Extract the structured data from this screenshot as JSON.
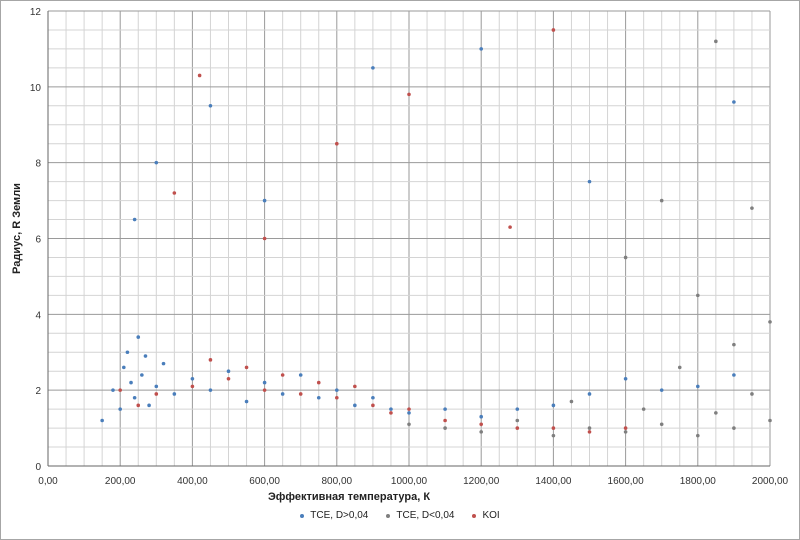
{
  "chart_data": {
    "type": "scatter",
    "title": "",
    "xlabel": "Эффективная температура, К",
    "ylabel": "Радиус, R Земли",
    "xlim": [
      0,
      2000
    ],
    "ylim": [
      0,
      12
    ],
    "x_ticks": [
      "0,00",
      "200,00",
      "400,00",
      "600,00",
      "800,00",
      "1000,00",
      "1200,00",
      "1400,00",
      "1600,00",
      "1800,00",
      "2000,00"
    ],
    "y_ticks": [
      "0",
      "2",
      "4",
      "6",
      "8",
      "10",
      "12"
    ],
    "grid": true,
    "legend_position": "bottom",
    "series": [
      {
        "name": "TCE, D>0,04",
        "color": "#4a7ebb",
        "points": [
          [
            150,
            1.2
          ],
          [
            180,
            2.0
          ],
          [
            200,
            1.5
          ],
          [
            210,
            2.6
          ],
          [
            220,
            3.0
          ],
          [
            230,
            2.2
          ],
          [
            240,
            1.8
          ],
          [
            250,
            3.4
          ],
          [
            260,
            2.4
          ],
          [
            270,
            2.9
          ],
          [
            280,
            1.6
          ],
          [
            300,
            2.1
          ],
          [
            320,
            2.7
          ],
          [
            350,
            1.9
          ],
          [
            400,
            2.3
          ],
          [
            450,
            2.0
          ],
          [
            500,
            2.5
          ],
          [
            550,
            1.7
          ],
          [
            600,
            2.2
          ],
          [
            650,
            1.9
          ],
          [
            700,
            2.4
          ],
          [
            750,
            1.8
          ],
          [
            800,
            2.0
          ],
          [
            850,
            1.6
          ],
          [
            900,
            1.8
          ],
          [
            950,
            1.5
          ],
          [
            1000,
            1.4
          ],
          [
            1100,
            1.5
          ],
          [
            1200,
            1.3
          ],
          [
            1300,
            1.5
          ],
          [
            1400,
            1.6
          ],
          [
            1500,
            1.9
          ],
          [
            1600,
            2.3
          ],
          [
            1700,
            2.0
          ],
          [
            1800,
            2.1
          ],
          [
            1900,
            2.4
          ],
          [
            240,
            6.5
          ],
          [
            300,
            8.0
          ],
          [
            450,
            9.5
          ],
          [
            600,
            7.0
          ],
          [
            900,
            10.5
          ],
          [
            1200,
            11.0
          ],
          [
            1500,
            7.5
          ],
          [
            1900,
            9.6
          ]
        ]
      },
      {
        "name": "TCE, D<0,04",
        "color": "#7f7f7f",
        "points": [
          [
            1000,
            1.1
          ],
          [
            1100,
            1.0
          ],
          [
            1200,
            0.9
          ],
          [
            1300,
            1.2
          ],
          [
            1400,
            0.8
          ],
          [
            1500,
            1.0
          ],
          [
            1600,
            0.9
          ],
          [
            1700,
            1.1
          ],
          [
            1800,
            0.8
          ],
          [
            1900,
            1.0
          ],
          [
            2000,
            1.2
          ],
          [
            1450,
            1.7
          ],
          [
            1650,
            1.5
          ],
          [
            1850,
            1.4
          ],
          [
            1950,
            1.9
          ],
          [
            1750,
            2.6
          ],
          [
            1900,
            3.2
          ],
          [
            2000,
            3.8
          ],
          [
            1800,
            4.5
          ],
          [
            1600,
            5.5
          ],
          [
            1700,
            7.0
          ],
          [
            1950,
            6.8
          ],
          [
            1850,
            11.2
          ]
        ]
      },
      {
        "name": "KOI",
        "color": "#c0504d",
        "points": [
          [
            200,
            2.0
          ],
          [
            250,
            1.6
          ],
          [
            300,
            1.9
          ],
          [
            400,
            2.1
          ],
          [
            450,
            2.8
          ],
          [
            500,
            2.3
          ],
          [
            550,
            2.6
          ],
          [
            600,
            2.0
          ],
          [
            650,
            2.4
          ],
          [
            700,
            1.9
          ],
          [
            750,
            2.2
          ],
          [
            800,
            1.8
          ],
          [
            850,
            2.1
          ],
          [
            900,
            1.6
          ],
          [
            950,
            1.4
          ],
          [
            1000,
            1.5
          ],
          [
            1100,
            1.2
          ],
          [
            1200,
            1.1
          ],
          [
            1300,
            1.0
          ],
          [
            1400,
            1.0
          ],
          [
            1500,
            0.9
          ],
          [
            1600,
            1.0
          ],
          [
            350,
            7.2
          ],
          [
            420,
            10.3
          ],
          [
            600,
            6.0
          ],
          [
            800,
            8.5
          ],
          [
            1000,
            9.8
          ],
          [
            1280,
            6.3
          ],
          [
            1400,
            11.5
          ]
        ]
      }
    ]
  }
}
